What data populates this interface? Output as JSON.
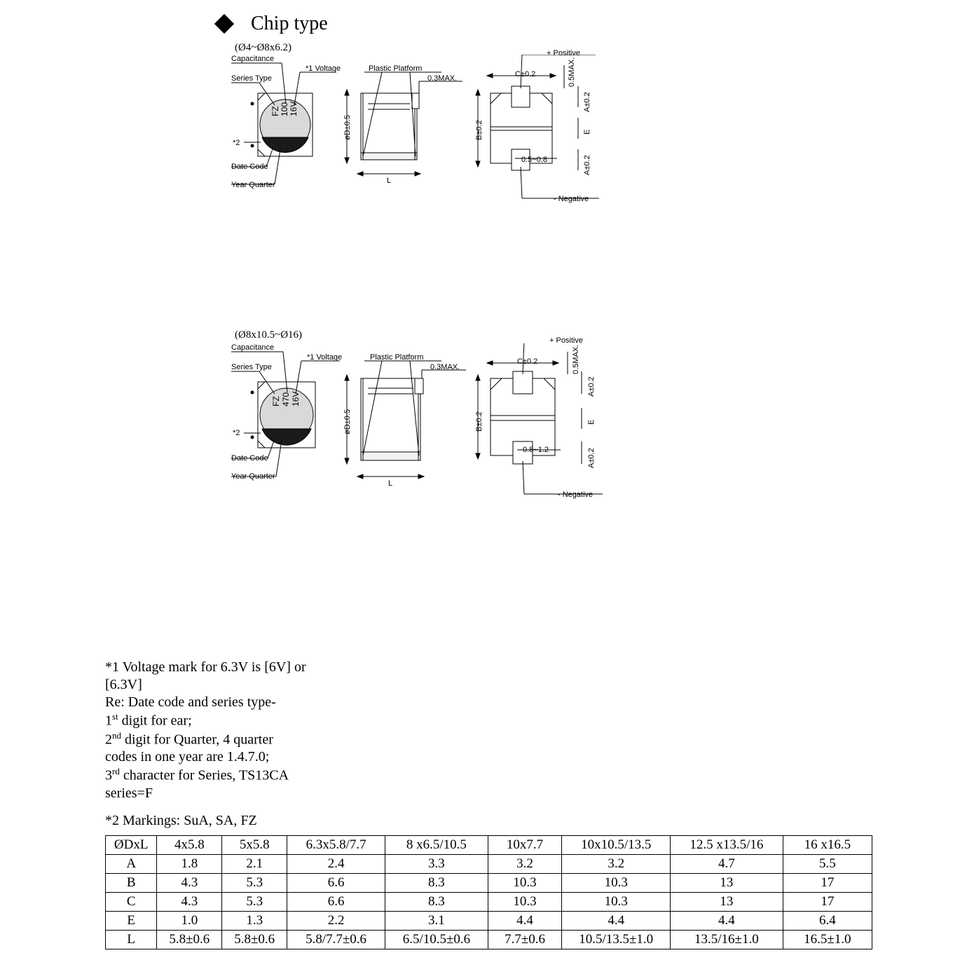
{
  "title": "Chip type",
  "diagram1": {
    "size_range": "(Ø4~Ø8x6.2)",
    "top_marking": "FZ",
    "cap_marking": "100",
    "volt_marking": "16V",
    "labels": {
      "capacitance": "Capacitance",
      "series_type": "Series Type",
      "voltage": "*1 Voltage",
      "plastic_platform": "Plastic Platform",
      "star2": "*2",
      "date_code": "Date Code",
      "year_quarter": "Year Quarter",
      "l": "L",
      "diameter": "øD±0.5",
      "max03": "0.3MAX.",
      "c_tol": "C±0.2",
      "b_tol": "B±0.2",
      "a_tol_top": "A±0.2",
      "a_tol_bot": "A±0.2",
      "e": "E",
      "max05": "0.5MAX.",
      "gap": "0.5~0.8",
      "positive": "+ Positive",
      "negative": "- Negative"
    }
  },
  "diagram2": {
    "size_range": "(Ø8x10.5~Ø16)",
    "top_marking": "FZ",
    "cap_marking": "470",
    "volt_marking": "16V",
    "labels": {
      "capacitance": "Capacitance",
      "series_type": "Series Type",
      "voltage": "*1 Voltage",
      "plastic_platform": "Plastic Platform",
      "star2": "*2",
      "date_code": "Date Code",
      "year_quarter": "Year Quarter",
      "l": "L",
      "diameter": "øD±0.5",
      "max03": "0.3MAX.",
      "c_tol": "C±0.2",
      "b_tol": "B±0.2",
      "a_tol_top": "A±0.2",
      "a_tol_bot": "A±0.2",
      "e": "E",
      "max05": "0.5MAX.",
      "gap": "0.8~1.2",
      "positive": "+ Positive",
      "negative": "- Negative"
    }
  },
  "notes": {
    "line1a": "*1 Voltage mark for 6.3V is [6V] or",
    "line1b": "[6.3V]",
    "line2": "Re: Date code and series type-",
    "line3_pre": "1",
    "line3_sup": "st",
    "line3_post": " digit for ear;",
    "line4_pre": "2",
    "line4_sup": "nd",
    "line4_post": " digit for Quarter, 4 quarter",
    "line5": "codes in one year are 1.4.7.0;",
    "line6_pre": "3",
    "line6_sup": "rd",
    "line6_post": " character for Series, TS13CA",
    "line7": "series=F",
    "line8": "*2 Markings: SuA, SA, FZ"
  },
  "table": {
    "headers": [
      "ØDxL",
      "4x5.8",
      "5x5.8",
      "6.3x5.8/7.7",
      "8 x6.5/10.5",
      "10x7.7",
      "10x10.5/13.5",
      "12.5 x13.5/16",
      "16 x16.5"
    ],
    "rows": [
      [
        "A",
        "1.8",
        "2.1",
        "2.4",
        "3.3",
        "3.2",
        "3.2",
        "4.7",
        "5.5"
      ],
      [
        "B",
        "4.3",
        "5.3",
        "6.6",
        "8.3",
        "10.3",
        "10.3",
        "13",
        "17"
      ],
      [
        "C",
        "4.3",
        "5.3",
        "6.6",
        "8.3",
        "10.3",
        "10.3",
        "13",
        "17"
      ],
      [
        "E",
        "1.0",
        "1.3",
        "2.2",
        "3.1",
        "4.4",
        "4.4",
        "4.4",
        "6.4"
      ],
      [
        "L",
        "5.8±0.6",
        "5.8±0.6",
        "5.8/7.7±0.6",
        "6.5/10.5±0.6",
        "7.7±0.6",
        "10.5/13.5±1.0",
        "13.5/16±1.0",
        "16.5±1.0"
      ]
    ],
    "col_widths_pct": [
      6.4,
      8.1,
      8.1,
      12.2,
      12.8,
      9.2,
      13.5,
      14.0,
      11.1
    ]
  },
  "colors": {
    "background": "#ffffff",
    "text": "#000000",
    "line": "#000000",
    "cap_body": "#d9d9d9",
    "cap_dark": "#1a1a1a",
    "platform": "#f2f2f2"
  }
}
